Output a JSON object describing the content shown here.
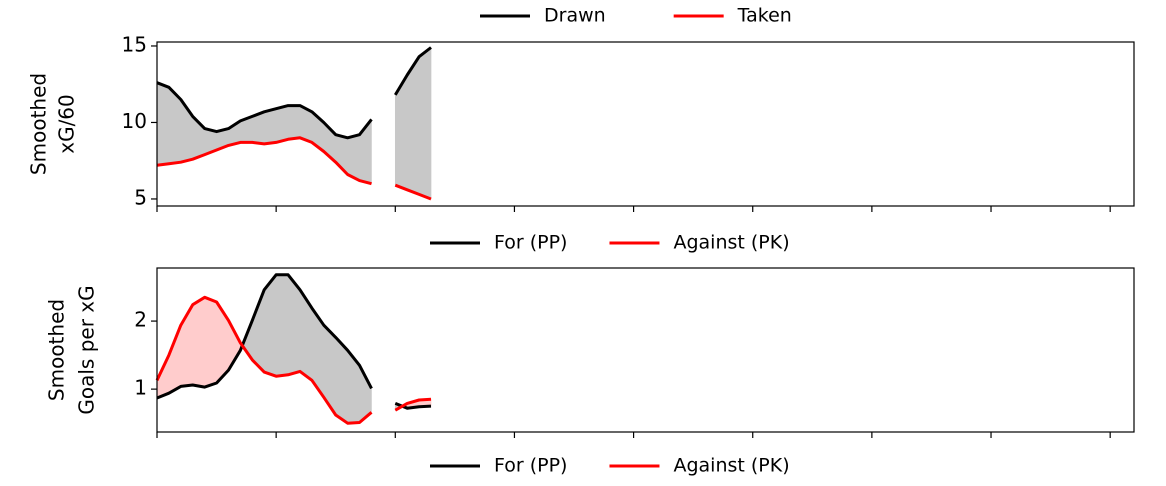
{
  "header_legend": [
    {
      "name": "Drawn",
      "color": "#000000"
    },
    {
      "name": "Taken",
      "color": "#ff0000"
    }
  ],
  "chart_data": [
    {
      "type": "line",
      "ylabel": [
        "Smoothed",
        "xG/60"
      ],
      "x": [
        0,
        1,
        2,
        3,
        4,
        5,
        6,
        7,
        8,
        9,
        10,
        11,
        12,
        13,
        14,
        15,
        16,
        17,
        18,
        19,
        20,
        21,
        22,
        23
      ],
      "series": [
        {
          "name": "For (PP)",
          "color": "#000000",
          "values": [
            12.6,
            12.3,
            11.5,
            10.4,
            9.6,
            9.4,
            9.6,
            10.1,
            10.4,
            10.7,
            10.9,
            11.1,
            11.1,
            10.7,
            10.0,
            9.2,
            9.0,
            9.2,
            10.2,
            null,
            11.8,
            13.1,
            14.3,
            14.9
          ]
        },
        {
          "name": "Against (PK)",
          "color": "#ff0000",
          "values": [
            7.2,
            7.3,
            7.4,
            7.6,
            7.9,
            8.2,
            8.5,
            8.7,
            8.7,
            8.6,
            8.7,
            8.9,
            9.0,
            8.7,
            8.1,
            7.4,
            6.6,
            6.2,
            6.0,
            null,
            5.9,
            5.6,
            5.3,
            5.0
          ]
        }
      ],
      "fill_colors": [
        "#c8c8c8",
        "#ffcccc"
      ],
      "xlim": [
        0,
        82
      ],
      "xticks": [
        0,
        10,
        20,
        30,
        40,
        50,
        60,
        70,
        80
      ],
      "ylim": [
        4.54,
        15.26
      ],
      "yticks": [
        5,
        10,
        15
      ]
    },
    {
      "type": "line",
      "ylabel": [
        "Smoothed",
        "Goals per xG"
      ],
      "x": [
        0,
        1,
        2,
        3,
        4,
        5,
        6,
        7,
        8,
        9,
        10,
        11,
        12,
        13,
        14,
        15,
        16,
        17,
        18,
        19,
        20,
        21,
        22,
        23
      ],
      "series": [
        {
          "name": "For (PP)",
          "color": "#000000",
          "values": [
            0.87,
            0.94,
            1.04,
            1.06,
            1.03,
            1.09,
            1.28,
            1.57,
            2.01,
            2.46,
            2.68,
            2.68,
            2.46,
            2.19,
            1.94,
            1.76,
            1.57,
            1.35,
            1.01,
            null,
            0.79,
            0.72,
            0.74,
            0.75
          ]
        },
        {
          "name": "Against (PK)",
          "color": "#ff0000",
          "values": [
            1.13,
            1.5,
            1.94,
            2.24,
            2.35,
            2.28,
            2.01,
            1.68,
            1.43,
            1.25,
            1.19,
            1.21,
            1.26,
            1.13,
            0.88,
            0.62,
            0.5,
            0.51,
            0.66,
            null,
            0.69,
            0.79,
            0.84,
            0.85
          ]
        }
      ],
      "fill_colors": [
        "#c8c8c8",
        "#ffcccc"
      ],
      "xlim": [
        0,
        82
      ],
      "xticks": [
        0,
        10,
        20,
        30,
        40,
        50,
        60,
        70,
        80
      ],
      "ylim": [
        0.37,
        2.78
      ],
      "yticks": [
        1,
        2
      ]
    }
  ]
}
